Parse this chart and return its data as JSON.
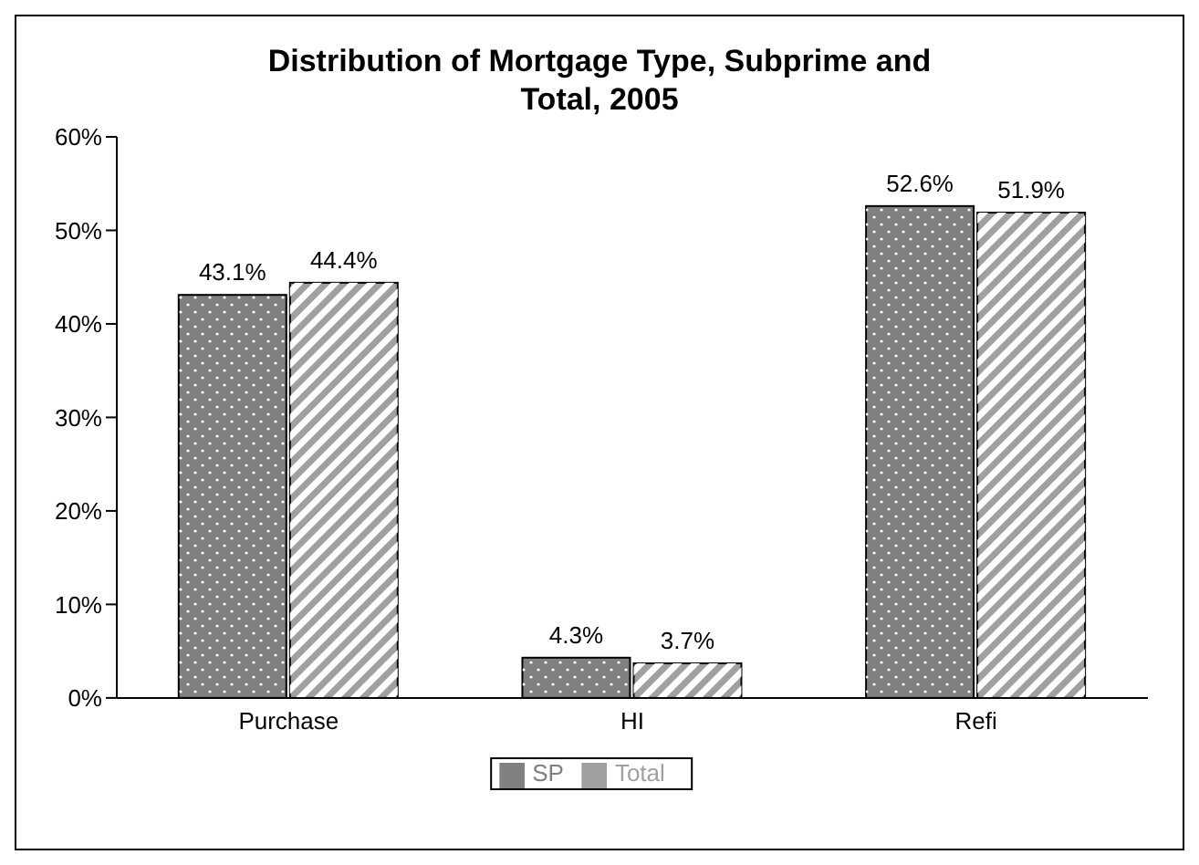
{
  "chart_data": {
    "type": "bar",
    "title": "Distribution of Mortgage Type, Subprime and Total, 2005",
    "categories": [
      "Purchase",
      "HI",
      "Refi"
    ],
    "series": [
      {
        "name": "SP",
        "color": "#808080",
        "values": [
          43.1,
          4.3,
          52.6
        ],
        "value_labels": [
          "43.1%",
          "4.3%",
          "52.6%"
        ]
      },
      {
        "name": "Total",
        "color": "#a0a0a0",
        "values": [
          44.4,
          3.7,
          51.9
        ],
        "value_labels": [
          "44.4%",
          "3.7%",
          "51.9%"
        ]
      }
    ],
    "ylim": [
      0,
      60
    ],
    "yticks": [
      {
        "value": 0,
        "label": "0%"
      },
      {
        "value": 10,
        "label": "10%"
      },
      {
        "value": 20,
        "label": "20%"
      },
      {
        "value": 30,
        "label": "30%"
      },
      {
        "value": 40,
        "label": "40%"
      },
      {
        "value": 50,
        "label": "50%"
      },
      {
        "value": 60,
        "label": "60%"
      }
    ],
    "grid": false,
    "legend": "bottom"
  }
}
